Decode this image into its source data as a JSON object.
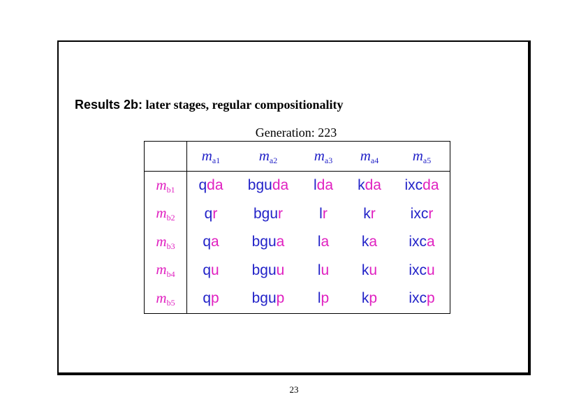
{
  "title": {
    "lead": "Results 2b:",
    "text": "later stages, regular compositionality"
  },
  "caption": "Generation: 223",
  "table": {
    "columns": [
      {
        "base": "m",
        "sub": "a1"
      },
      {
        "base": "m",
        "sub": "a2"
      },
      {
        "base": "m",
        "sub": "a3"
      },
      {
        "base": "m",
        "sub": "a4"
      },
      {
        "base": "m",
        "sub": "a5"
      }
    ],
    "rows": [
      {
        "label": {
          "base": "m",
          "sub": "b1"
        },
        "cells": [
          [
            "q",
            "da"
          ],
          [
            "bgu",
            "da"
          ],
          [
            "l",
            "da"
          ],
          [
            "k",
            "da"
          ],
          [
            "ixc",
            "da"
          ]
        ]
      },
      {
        "label": {
          "base": "m",
          "sub": "b2"
        },
        "cells": [
          [
            "q",
            "r"
          ],
          [
            "bgu",
            "r"
          ],
          [
            "l",
            "r"
          ],
          [
            "k",
            "r"
          ],
          [
            "ixc",
            "r"
          ]
        ]
      },
      {
        "label": {
          "base": "m",
          "sub": "b3"
        },
        "cells": [
          [
            "q",
            "a"
          ],
          [
            "bgu",
            "a"
          ],
          [
            "l",
            "a"
          ],
          [
            "k",
            "a"
          ],
          [
            "ixc",
            "a"
          ]
        ]
      },
      {
        "label": {
          "base": "m",
          "sub": "b4"
        },
        "cells": [
          [
            "q",
            "u"
          ],
          [
            "bgu",
            "u"
          ],
          [
            "l",
            "u"
          ],
          [
            "k",
            "u"
          ],
          [
            "ixc",
            "u"
          ]
        ]
      },
      {
        "label": {
          "base": "m",
          "sub": "b5"
        },
        "cells": [
          [
            "q",
            "p"
          ],
          [
            "bgu",
            "p"
          ],
          [
            "l",
            "p"
          ],
          [
            "k",
            "p"
          ],
          [
            "ixc",
            "p"
          ]
        ]
      }
    ]
  },
  "page_number": "23"
}
